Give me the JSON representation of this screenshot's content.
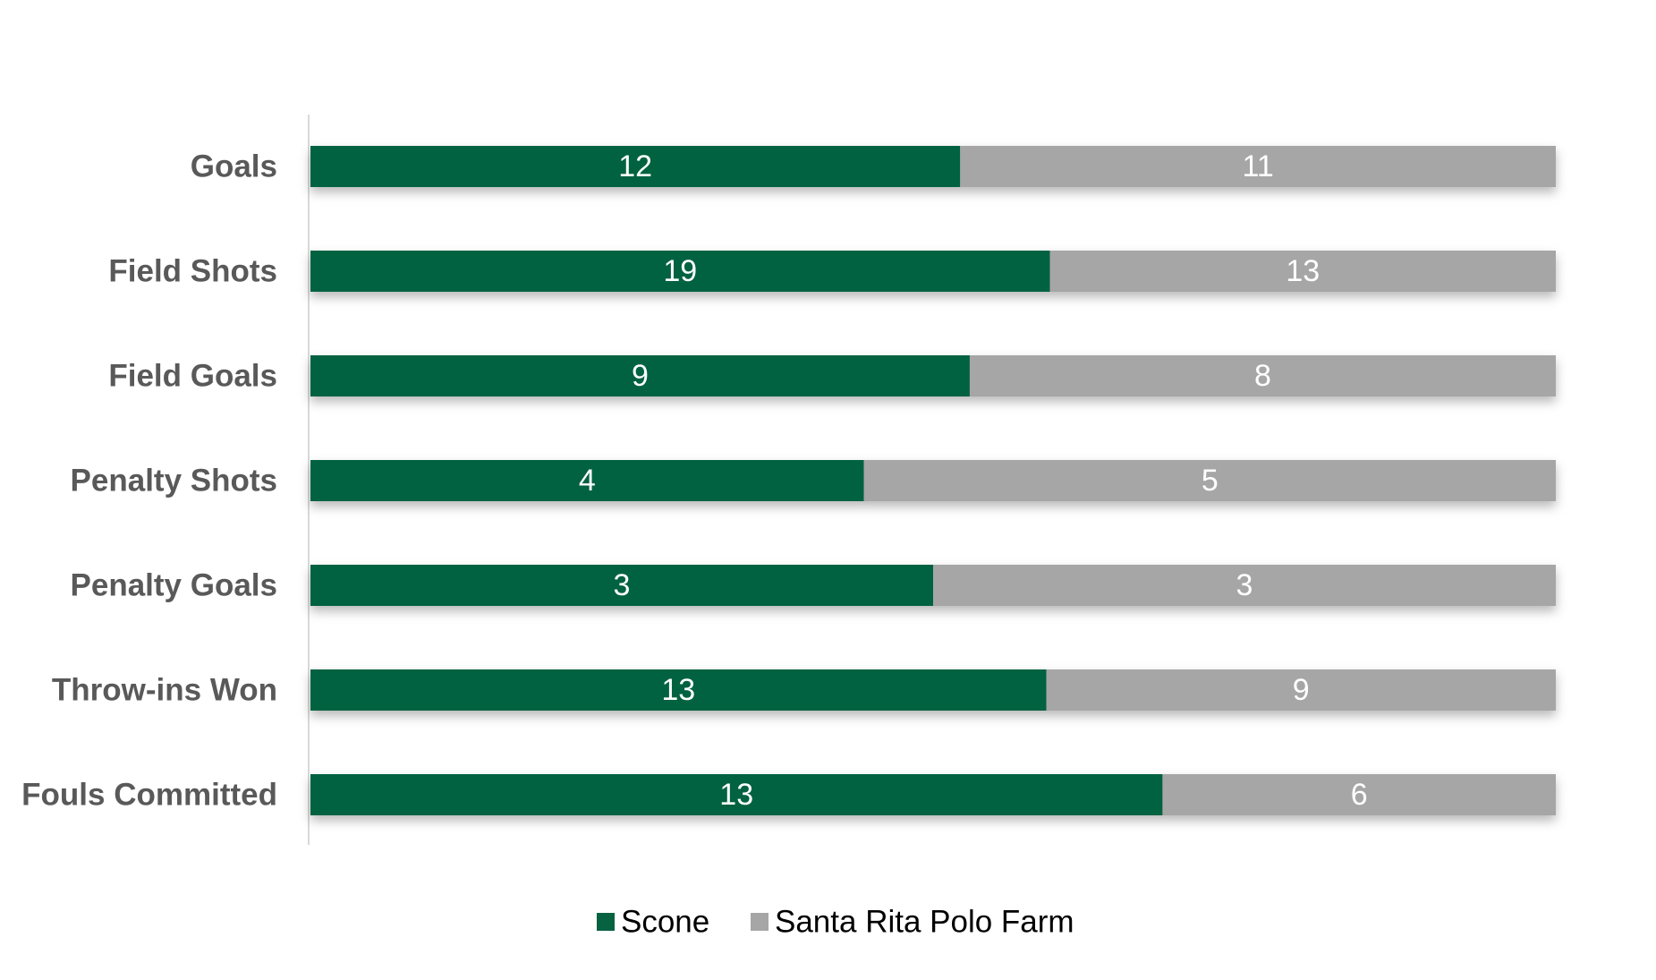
{
  "chart_data": {
    "type": "bar",
    "orientation": "horizontal",
    "stacked": "percent",
    "categories": [
      "Goals",
      "Field Shots",
      "Field Goals",
      "Penalty Shots",
      "Penalty Goals",
      "Throw-ins Won",
      "Fouls Committed"
    ],
    "series": [
      {
        "name": "Scone",
        "color": "#066241",
        "values": [
          12,
          19,
          9,
          4,
          3,
          13,
          13
        ]
      },
      {
        "name": "Santa Rita Polo Farm",
        "color": "#a6a6a6",
        "values": [
          11,
          13,
          8,
          5,
          3,
          9,
          6
        ]
      }
    ],
    "title": "",
    "xlabel": "",
    "ylabel": "",
    "grid": false,
    "legend": "bottom-center",
    "data_labels": true
  }
}
